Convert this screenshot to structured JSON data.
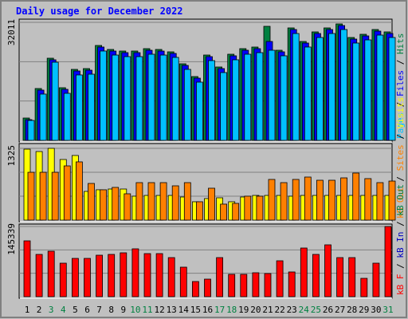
{
  "title": "Daily usage for December 2022",
  "chart_data": [
    {
      "type": "bar",
      "ylim": [
        0,
        32011
      ],
      "yticks": [
        32011
      ],
      "separator": " / ",
      "series": [
        {
          "name": "Hits",
          "color": "#008040",
          "values": [
            6056,
            14060,
            22279,
            14276,
            19251,
            19467,
            25740,
            24658,
            24226,
            24226,
            24875,
            24658,
            24009,
            20765,
            17304,
            23144,
            19900,
            23360,
            24875,
            25307,
            30931,
            24442,
            30498,
            26821,
            29417,
            30498,
            31580,
            27903,
            28768,
            30066,
            29417
          ]
        },
        {
          "name": "Files",
          "color": "#0000ff",
          "values": [
            5620,
            13630,
            21850,
            13840,
            18820,
            19030,
            25310,
            24220,
            23790,
            23790,
            24440,
            24220,
            23580,
            20330,
            16870,
            22710,
            19470,
            22930,
            24440,
            24870,
            26821,
            24010,
            30060,
            26390,
            28980,
            30060,
            31140,
            27470,
            28330,
            29630,
            28980
          ]
        },
        {
          "name": "Pages",
          "color": "#00c0ff",
          "values": [
            5400,
            12550,
            21200,
            12760,
            17740,
            17950,
            24230,
            23140,
            22710,
            22710,
            23360,
            23140,
            22500,
            19250,
            15790,
            21630,
            18390,
            21850,
            23360,
            23790,
            24440,
            22930,
            28980,
            25310,
            27900,
            28980,
            30060,
            26390,
            27250,
            28550,
            27900
          ]
        }
      ]
    },
    {
      "type": "bar",
      "ylim": [
        0,
        1325
      ],
      "yticks": [
        1325
      ],
      "separator": " / ",
      "legend": [
        {
          "name": "kB Out",
          "color": "#ff8000"
        },
        {
          "name": "Sites",
          "color": "#ff8000"
        },
        {
          "name": "Visits",
          "color": "#ffff00"
        }
      ],
      "series": [
        {
          "name": "Visits",
          "color": "#ffff00",
          "values": [
            1310,
            1266,
            1325,
            1119,
            1193,
            530,
            560,
            574,
            574,
            442,
            456,
            456,
            456,
            427,
            339,
            398,
            412,
            339,
            427,
            456,
            456,
            456,
            442,
            456,
            456,
            456,
            456,
            456,
            456,
            456,
            456
          ]
        },
        {
          "name": "Sites",
          "color": "#ff8000",
          "values": [
            883,
            883,
            883,
            1001,
            1075,
            677,
            560,
            604,
            486,
            692,
            692,
            692,
            633,
            692,
            339,
            589,
            295,
            309,
            442,
            442,
            751,
            692,
            751,
            795,
            736,
            736,
            780,
            869,
            766,
            692,
            721
          ]
        }
      ]
    },
    {
      "type": "bar",
      "ylim": [
        0,
        145339
      ],
      "yticks": [
        145339
      ],
      "separator": " / ",
      "legend": [
        {
          "name": "kB F",
          "color": "#ff0000"
        },
        {
          "name": "kB In",
          "color": "#0000c0"
        },
        {
          "name": "kB Out",
          "color": "#008040"
        }
      ],
      "categories": [
        "1",
        "2",
        "3",
        "4",
        "5",
        "6",
        "7",
        "8",
        "9",
        "10",
        "11",
        "12",
        "13",
        "14",
        "15",
        "16",
        "17",
        "18",
        "19",
        "20",
        "21",
        "22",
        "23",
        "24",
        "25",
        "26",
        "27",
        "28",
        "29",
        "30",
        "31"
      ],
      "category_colors": [
        "#000000",
        "#000000",
        "#008040",
        "#008040",
        "#000000",
        "#000000",
        "#000000",
        "#000000",
        "#000000",
        "#008040",
        "#008040",
        "#000000",
        "#000000",
        "#000000",
        "#000000",
        "#000000",
        "#008040",
        "#008040",
        "#000000",
        "#000000",
        "#000000",
        "#000000",
        "#000000",
        "#008040",
        "#008040",
        "#000000",
        "#000000",
        "#000000",
        "#000000",
        "#000000",
        "#008040"
      ],
      "series": [
        {
          "name": "kB F",
          "color": "#ff0000",
          "values": [
            115612,
            87535,
            94141,
            69367,
            79277,
            79277,
            85883,
            87535,
            90838,
            99096,
            89186,
            89186,
            80928,
            61109,
            31380,
            36335,
            80928,
            46245,
            46245,
            49548,
            47896,
            74322,
            51200,
            100748,
            87535,
            107354,
            80928,
            80928,
            37987,
            69367,
            145339
          ]
        }
      ]
    }
  ]
}
